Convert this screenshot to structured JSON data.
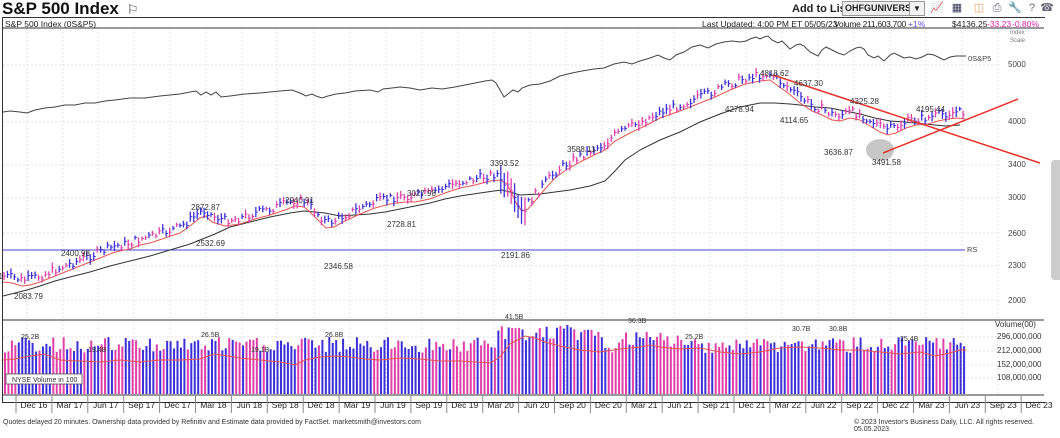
{
  "header": {
    "title": "S&P 500 Index",
    "flag_icon": "⚐",
    "add_to_list_label": "Add to List:",
    "list_value": "OHFGUNIVERSE",
    "tools": [
      "chart-icon",
      "layout-icon",
      "pattern-icon",
      "print-icon",
      "tools-icon",
      "help-icon",
      "phone-icon"
    ]
  },
  "quote_bar": {
    "symbol_label": "S&P 500 Index  (0S&P5)",
    "last_updated": "Last Updated: 4:00 PM ET 05/05/23",
    "volume": "Volume 211,603,700",
    "volume_change": "+1%",
    "price": "$4136.25",
    "change": "-33.23",
    "change_pct": "-0.80%"
  },
  "scale_label": [
    "Index",
    "Scale"
  ],
  "footer": {
    "left": "Quotes delayed 20 minutes. Ownership data provided by Refinitiv and Estimate data provided by FactSet. marketsmith@investors.com",
    "right": "© 2023 Investor's Business Daily, LLC. All rights reserved.   05.05.2023"
  },
  "colors": {
    "up_bar": "#3a2fd8",
    "down_bar": "#e040a8",
    "ma_short": "#e8554e",
    "ma_long": "#333333",
    "rs_line": "#4a44d6",
    "trendline": "#e8322a",
    "pct_up": "#6a4ee0",
    "pct_down": "#e020b0"
  },
  "chart_data": [
    {
      "type": "line",
      "title": "S&P 500 Index (0S&P5) weekly price",
      "xlabel": "",
      "ylabel": "Index Scale",
      "y_ticks": [
        2000,
        2300,
        2600,
        3000,
        3400,
        4000,
        5000
      ],
      "x_ticks": [
        "Dec 16",
        "Mar 17",
        "Jun 17",
        "Sep 17",
        "Dec 17",
        "Mar 18",
        "Jun 18",
        "Sep 18",
        "Dec 18",
        "Mar 19",
        "Jun 19",
        "Sep 19",
        "Dec 19",
        "Mar 20",
        "Jun 20",
        "Sep 20",
        "Dec 20",
        "Mar 21",
        "Jun 21",
        "Sep 21",
        "Dec 21",
        "Mar 22",
        "Jun 22",
        "Sep 22",
        "Dec 22",
        "Mar 23",
        "Jun 23",
        "Sep 23",
        "Dec 23"
      ],
      "annotations": [
        {
          "label": "2083.79",
          "x": "Nov 16",
          "value": 2083.79,
          "kind": "low"
        },
        {
          "label": "2400.98",
          "x": "Mar 17",
          "value": 2400.98,
          "kind": "high"
        },
        {
          "label": "2532.69",
          "x": "Feb 18",
          "value": 2532.69,
          "kind": "low"
        },
        {
          "label": "2872.87",
          "x": "Jan 18",
          "value": 2872.87,
          "kind": "high"
        },
        {
          "label": "2940.91",
          "x": "Sep 18",
          "value": 2940.91,
          "kind": "high"
        },
        {
          "label": "2346.58",
          "x": "Dec 18",
          "value": 2346.58,
          "kind": "low"
        },
        {
          "label": "2728.81",
          "x": "Jun 19",
          "value": 2728.81,
          "kind": "low"
        },
        {
          "label": "3027.98",
          "x": "Jul 19",
          "value": 3027.98,
          "kind": "high"
        },
        {
          "label": "3393.52",
          "x": "Feb 20",
          "value": 3393.52,
          "kind": "high"
        },
        {
          "label": "2191.86",
          "x": "Mar 20",
          "value": 2191.86,
          "kind": "low"
        },
        {
          "label": "3588.11",
          "x": "Sep 20",
          "value": 3588.11,
          "kind": "high"
        },
        {
          "label": "4278.94",
          "x": "Oct 21",
          "value": 4278.94,
          "kind": "low"
        },
        {
          "label": "4818.62",
          "x": "Jan 22",
          "value": 4818.62,
          "kind": "high"
        },
        {
          "label": "4114.65",
          "x": "Feb 22",
          "value": 4114.65,
          "kind": "low"
        },
        {
          "label": "4637.30",
          "x": "Mar 22",
          "value": 4637.3,
          "kind": "high"
        },
        {
          "label": "3636.87",
          "x": "Jun 22",
          "value": 3636.87,
          "kind": "low"
        },
        {
          "label": "4325.28",
          "x": "Aug 22",
          "value": 4325.28,
          "kind": "high"
        },
        {
          "label": "3491.58",
          "x": "Oct 22",
          "value": 3491.58,
          "kind": "low"
        },
        {
          "label": "4195.44",
          "x": "Feb 23",
          "value": 4195.44,
          "kind": "high"
        }
      ],
      "series": [
        {
          "name": "Weekly close (approx)",
          "x": [
            "Dec 16",
            "Mar 17",
            "Jun 17",
            "Sep 17",
            "Dec 17",
            "Mar 18",
            "Jun 18",
            "Sep 18",
            "Dec 18",
            "Mar 19",
            "Jun 19",
            "Sep 19",
            "Dec 19",
            "Mar 20",
            "Jun 20",
            "Sep 20",
            "Dec 20",
            "Mar 21",
            "Jun 21",
            "Sep 21",
            "Dec 21",
            "Mar 22",
            "Jun 22",
            "Sep 22",
            "Dec 22",
            "Mar 23",
            "May 23"
          ],
          "values": [
            2260,
            2370,
            2430,
            2500,
            2670,
            2640,
            2720,
            2910,
            2500,
            2830,
            2940,
            2980,
            3230,
            2600,
            3100,
            3360,
            3700,
            3970,
            4300,
            4350,
            4770,
            4500,
            3800,
            3600,
            3840,
            4100,
            4136
          ]
        },
        {
          "name": "RS line",
          "note": "relative strength line in upper pane labeled 0S&P5"
        },
        {
          "name": "10-week MA",
          "color": "red"
        },
        {
          "name": "40-week MA",
          "color": "black"
        },
        {
          "name": "RS horizontal line",
          "label": "RS"
        }
      ],
      "trendlines": [
        {
          "from": "4818.62 (Jan 22)",
          "to": "~3400 (Sep 23)",
          "color": "red",
          "kind": "downtrend"
        },
        {
          "from": "3491.58 (Oct 22)",
          "to": "~4450 (Sep 23)",
          "color": "red",
          "kind": "uptrend"
        }
      ]
    },
    {
      "type": "bar",
      "title": "Volume(00)",
      "legend": "NYSE Volume in 100",
      "y_ticks": [
        "108,000,000",
        "152,000,000",
        "212,000,000",
        "296,000,000"
      ],
      "annotations": [
        {
          "label": "25.2B",
          "x": "Nov 16"
        },
        {
          "label": "19.4B",
          "x": "Jun 17"
        },
        {
          "label": "26.5B",
          "x": "Mar 18"
        },
        {
          "label": "19.1B",
          "x": "Jun 18"
        },
        {
          "label": "26.8B",
          "x": "Dec 18"
        },
        {
          "label": "41.5B",
          "x": "Mar 20"
        },
        {
          "label": "36.3B",
          "x": "Mar 21"
        },
        {
          "label": "25.2B",
          "x": "Jun 21"
        },
        {
          "label": "30.7B",
          "x": "Mar 22"
        },
        {
          "label": "30.8B",
          "x": "Jun 22"
        },
        {
          "label": "25.4B",
          "x": "Dec 22"
        }
      ]
    }
  ]
}
